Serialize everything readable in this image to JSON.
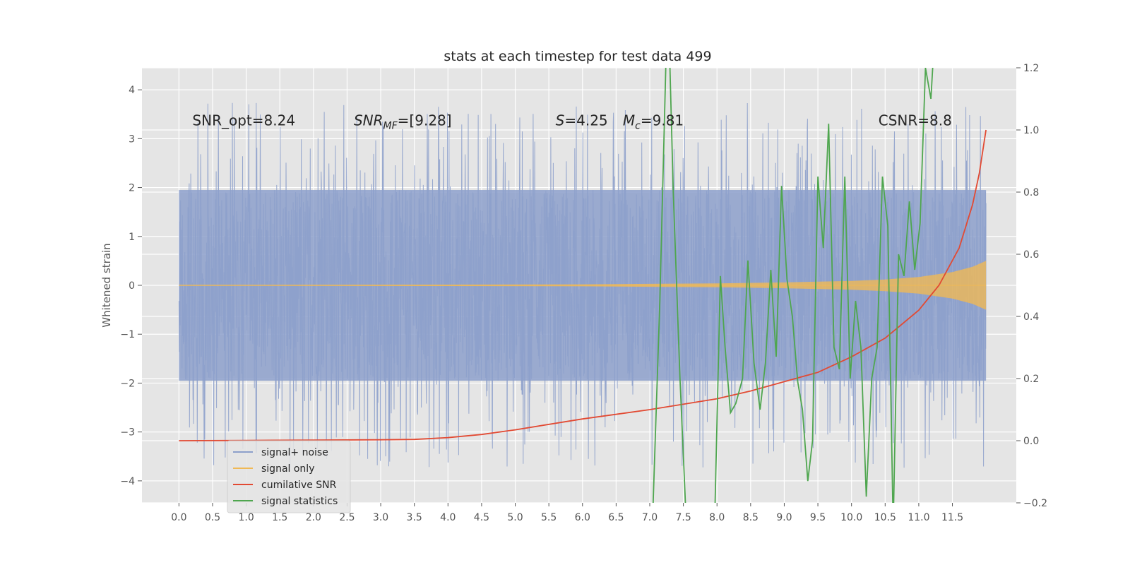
{
  "chart_data": {
    "type": "line",
    "title": "stats at each timestep for test data 499",
    "ylabel": "Whitened strain",
    "xlabel": "",
    "xlim": [
      -0.55,
      12.45
    ],
    "ylim_left": [
      -4.45,
      4.45
    ],
    "ylim_right": [
      -0.2,
      1.2
    ],
    "x_ticks": [
      "0.0",
      "0.5",
      "1.0",
      "1.5",
      "2.0",
      "2.5",
      "3.0",
      "3.5",
      "4.0",
      "4.5",
      "5.0",
      "5.5",
      "6.0",
      "6.5",
      "7.0",
      "7.5",
      "8.0",
      "8.5",
      "9.0",
      "9.5",
      "10.0",
      "10.5",
      "11.0",
      "11.5"
    ],
    "x_tick_values": [
      0,
      0.5,
      1,
      1.5,
      2,
      2.5,
      3,
      3.5,
      4,
      4.5,
      5,
      5.5,
      6,
      6.5,
      7,
      7.5,
      8,
      8.5,
      9,
      9.5,
      10,
      10.5,
      11,
      11.5
    ],
    "y_ticks_left": [
      "4",
      "3",
      "2",
      "1",
      "0",
      "−1",
      "−2",
      "−3",
      "−4"
    ],
    "y_tick_values_left": [
      4,
      3,
      2,
      1,
      0,
      -1,
      -2,
      -3,
      -4
    ],
    "y_ticks_right": [
      "1.2",
      "1.0",
      "0.8",
      "0.6",
      "0.4",
      "0.2",
      "0.0",
      "−0.2"
    ],
    "y_tick_values_right": [
      1.2,
      1.0,
      0.8,
      0.6,
      0.4,
      0.2,
      0.0,
      -0.2
    ],
    "grid": true,
    "legend_position": "lower-left",
    "series": [
      {
        "name": "signal+ noise",
        "axis": "left",
        "color": "#8da0cb",
        "kind": "dense-noise",
        "x_range": [
          0,
          12
        ],
        "core_amplitude": 1.95,
        "peak_amplitude": 4.05
      },
      {
        "name": "signal only",
        "axis": "left",
        "color": "#f0b955",
        "kind": "chirp-envelope",
        "x": [
          0,
          4,
          6,
          7,
          8,
          9,
          10,
          10.5,
          11,
          11.5,
          11.8,
          12
        ],
        "amplitude": [
          0.01,
          0.015,
          0.02,
          0.03,
          0.04,
          0.06,
          0.09,
          0.12,
          0.17,
          0.27,
          0.38,
          0.5
        ]
      },
      {
        "name": "cumilative SNR",
        "axis": "right",
        "color": "#e24a33",
        "x": [
          0,
          1,
          2,
          3,
          3.5,
          4,
          4.5,
          5,
          6,
          7,
          8,
          8.5,
          9,
          9.5,
          10,
          10.5,
          11,
          11.3,
          11.6,
          11.8,
          11.9,
          12
        ],
        "values": [
          0.0,
          0.001,
          0.002,
          0.003,
          0.004,
          0.01,
          0.02,
          0.035,
          0.07,
          0.1,
          0.135,
          0.16,
          0.19,
          0.22,
          0.27,
          0.33,
          0.42,
          0.5,
          0.62,
          0.76,
          0.86,
          1.0
        ]
      },
      {
        "name": "signal statistics",
        "axis": "right",
        "color": "#4fa64f",
        "x": [
          7.05,
          7.15,
          7.25,
          7.3,
          7.35,
          7.45,
          7.55,
          7.7,
          7.8,
          7.95,
          8.05,
          8.12,
          8.2,
          8.28,
          8.38,
          8.46,
          8.55,
          8.64,
          8.72,
          8.8,
          8.88,
          8.96,
          9.04,
          9.12,
          9.2,
          9.27,
          9.35,
          9.42,
          9.5,
          9.58,
          9.66,
          9.74,
          9.82,
          9.9,
          9.98,
          10.06,
          10.14,
          10.22,
          10.3,
          10.38,
          10.46,
          10.54,
          10.62,
          10.7,
          10.78,
          10.86,
          10.94,
          11.02,
          11.1,
          11.18,
          11.26,
          11.34
        ],
        "values": [
          -0.2,
          0.45,
          1.3,
          1.2,
          0.8,
          0.2,
          -0.3,
          -0.26,
          -0.4,
          -0.4,
          0.53,
          0.3,
          0.09,
          0.12,
          0.2,
          0.58,
          0.25,
          0.1,
          0.25,
          0.55,
          0.27,
          0.82,
          0.52,
          0.4,
          0.19,
          0.1,
          -0.13,
          0.0,
          0.85,
          0.62,
          1.02,
          0.3,
          0.23,
          0.85,
          0.2,
          0.45,
          0.3,
          -0.18,
          0.2,
          0.3,
          0.85,
          0.69,
          -0.28,
          0.6,
          0.53,
          0.77,
          0.55,
          0.7,
          1.2,
          1.1,
          1.4,
          1.3
        ]
      }
    ],
    "annotations": [
      {
        "text": "SNR_opt=8.24",
        "x": 0.2,
        "y": 3.27,
        "italic": false
      },
      {
        "text": "SNR",
        "x": 2.6,
        "y": 3.27,
        "italic": true,
        "sub": "MF",
        "suffix": "=[9.28]"
      },
      {
        "text": "S",
        "x": 5.6,
        "y": 3.27,
        "italic": true,
        "suffix": "=4.25"
      },
      {
        "text": "M",
        "x": 6.6,
        "y": 3.27,
        "italic": true,
        "sub": "c",
        "suffix": "=9.81"
      },
      {
        "text": "CSNR=8.8",
        "x": 10.4,
        "y": 3.27,
        "italic": false
      }
    ]
  }
}
